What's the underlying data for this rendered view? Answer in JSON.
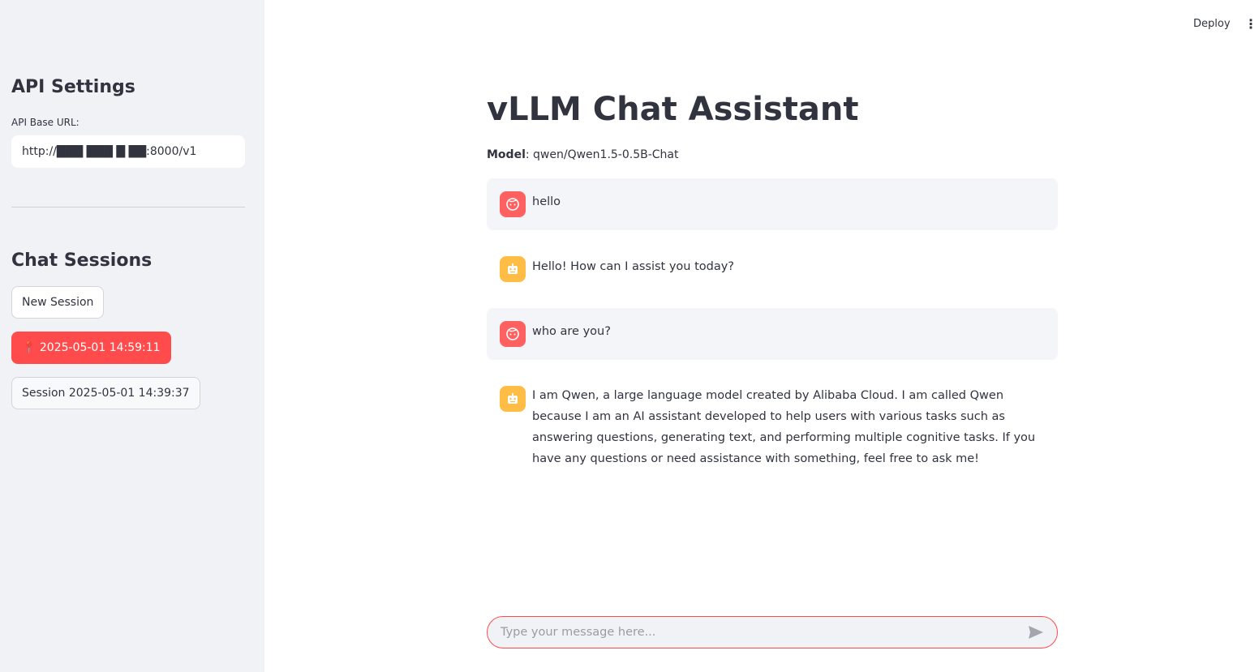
{
  "sidebar": {
    "api_heading": "API Settings",
    "api_label": "API Base URL:",
    "api_value": "http://███ ███ █ ██:8000/v1",
    "sessions_heading": "Chat Sessions",
    "new_session": "New Session",
    "sessions": [
      "📍 2025-05-01 14:59:11",
      "Session 2025-05-01 14:39:37"
    ]
  },
  "header": {
    "deploy": "Deploy",
    "menu": "⋮"
  },
  "main": {
    "title": "vLLM Chat Assistant",
    "model_label": "Model",
    "model_value": ": qwen/Qwen1.5-0.5B-Chat",
    "messages": [
      {
        "role": "user",
        "text": "hello"
      },
      {
        "role": "assistant",
        "text": "Hello! How can I assist you today?"
      },
      {
        "role": "user",
        "text": "who are you?"
      },
      {
        "role": "assistant",
        "text": "I am Qwen, a large language model created by Alibaba Cloud. I am called Qwen because I am an AI assistant developed to help users with various tasks such as answering questions, generating text, and performing multiple cognitive tasks. If you have any questions or need assistance with something, feel free to ask me!"
      }
    ],
    "input_placeholder": "Type your message here..."
  },
  "colors": {
    "accent": "#ff4b4b",
    "user_avatar": "#ff6060",
    "assistant_avatar": "#ffbd45"
  }
}
